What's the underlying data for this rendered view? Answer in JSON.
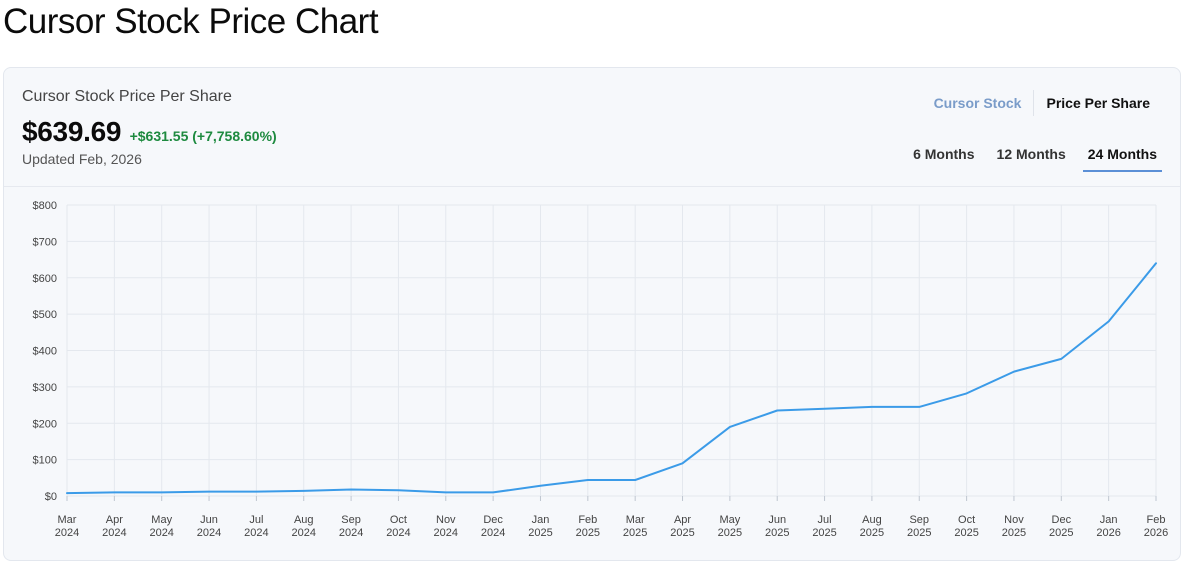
{
  "page": {
    "title": "Cursor Stock Price Chart"
  },
  "card": {
    "subtitle": "Cursor Stock Price Per Share",
    "price": "$639.69",
    "change": "+$631.55 (+7,758.60%)",
    "updated": "Updated Feb, 2026",
    "view_toggle": [
      {
        "label": "Cursor Stock",
        "active": false
      },
      {
        "label": "Price Per Share",
        "active": true
      }
    ],
    "range_tabs": [
      {
        "label": "6 Months",
        "active": false
      },
      {
        "label": "12 Months",
        "active": false
      },
      {
        "label": "24 Months",
        "active": true
      }
    ]
  },
  "colors": {
    "line": "#3b9be8",
    "grid": "#e4e8ee",
    "positive": "#1d8a3f"
  },
  "chart_data": {
    "type": "line",
    "title": "",
    "xlabel": "",
    "ylabel": "",
    "ylim": [
      0,
      800
    ],
    "yticks": [
      "$0",
      "$100",
      "$200",
      "$300",
      "$400",
      "$500",
      "$600",
      "$700",
      "$800"
    ],
    "grid": true,
    "x": [
      [
        "Mar",
        "2024"
      ],
      [
        "Apr",
        "2024"
      ],
      [
        "May",
        "2024"
      ],
      [
        "Jun",
        "2024"
      ],
      [
        "Jul",
        "2024"
      ],
      [
        "Aug",
        "2024"
      ],
      [
        "Sep",
        "2024"
      ],
      [
        "Oct",
        "2024"
      ],
      [
        "Nov",
        "2024"
      ],
      [
        "Dec",
        "2024"
      ],
      [
        "Jan",
        "2025"
      ],
      [
        "Feb",
        "2025"
      ],
      [
        "Mar",
        "2025"
      ],
      [
        "Apr",
        "2025"
      ],
      [
        "May",
        "2025"
      ],
      [
        "Jun",
        "2025"
      ],
      [
        "Jul",
        "2025"
      ],
      [
        "Aug",
        "2025"
      ],
      [
        "Sep",
        "2025"
      ],
      [
        "Oct",
        "2025"
      ],
      [
        "Nov",
        "2025"
      ],
      [
        "Dec",
        "2025"
      ],
      [
        "Jan",
        "2026"
      ],
      [
        "Feb",
        "2026"
      ]
    ],
    "series": [
      {
        "values": [
          8,
          10,
          10,
          12,
          12,
          14,
          18,
          16,
          10,
          10,
          28,
          44,
          44,
          90,
          190,
          235,
          240,
          245,
          245,
          282,
          342,
          377,
          480,
          639.69
        ]
      }
    ]
  }
}
